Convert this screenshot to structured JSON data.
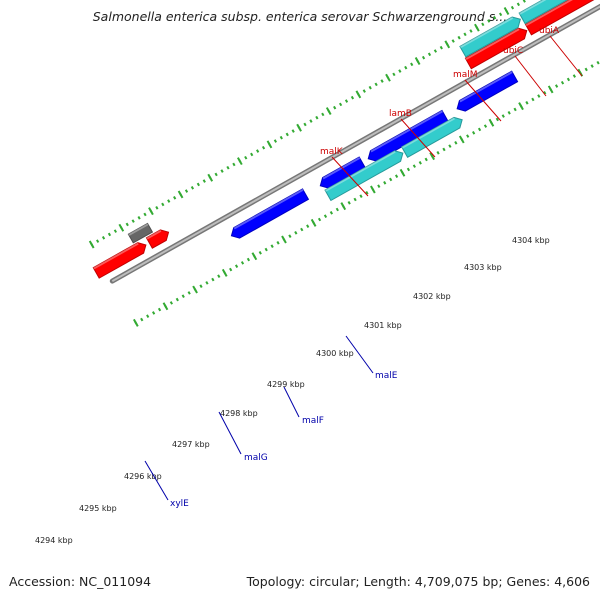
{
  "title": "Salmonella enterica subsp. enterica serovar Schwarzenground s...",
  "footer": {
    "accession": "Accession: NC_011094",
    "summary": "Topology: circular; Length: 4,709,075 bp; Genes: 4,606"
  },
  "colors": {
    "forward_cds": "#ff0000",
    "reverse_cds": "#0000ff",
    "rna_or_forward_alt": "#33cccc",
    "other_feature": "#666666",
    "backbone": "#999999",
    "tick": "#33aa33",
    "forward_label": "#cc0000",
    "reverse_label": "#0000aa"
  },
  "scale_ticks": [
    "4294 kbp",
    "4295 kbp",
    "4296 kbp",
    "4297 kbp",
    "4298 kbp",
    "4299 kbp",
    "4300 kbp",
    "4301 kbp",
    "4302 kbp",
    "4303 kbp",
    "4304 kbp"
  ],
  "gene_labels": [
    {
      "name": "ubiA",
      "strand": "forward"
    },
    {
      "name": "ubiC",
      "strand": "forward"
    },
    {
      "name": "malM",
      "strand": "forward"
    },
    {
      "name": "lamB",
      "strand": "forward"
    },
    {
      "name": "malK",
      "strand": "forward"
    },
    {
      "name": "malE",
      "strand": "reverse"
    },
    {
      "name": "malF",
      "strand": "reverse"
    },
    {
      "name": "malG",
      "strand": "reverse"
    },
    {
      "name": "xylE",
      "strand": "reverse"
    }
  ]
}
